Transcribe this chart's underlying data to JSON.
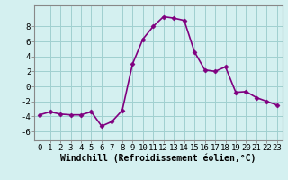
{
  "x": [
    0,
    1,
    2,
    3,
    4,
    5,
    6,
    7,
    8,
    9,
    10,
    11,
    12,
    13,
    14,
    15,
    16,
    17,
    18,
    19,
    20,
    21,
    22,
    23
  ],
  "y": [
    -3.8,
    -3.4,
    -3.7,
    -3.8,
    -3.8,
    -3.4,
    -5.3,
    -4.7,
    -3.2,
    3.0,
    6.3,
    8.0,
    9.3,
    9.1,
    8.8,
    4.6,
    2.2,
    2.0,
    2.6,
    -0.8,
    -0.7,
    -1.5,
    -2.0,
    -2.5
  ],
  "line_color": "#800080",
  "marker": "D",
  "marker_size": 2.5,
  "bg_color": "#d4f0f0",
  "grid_color": "#a0d0d0",
  "xlabel": "Windchill (Refroidissement éolien,°C)",
  "xlabel_fontsize": 7,
  "xtick_labels": [
    "0",
    "1",
    "2",
    "3",
    "4",
    "5",
    "6",
    "7",
    "8",
    "9",
    "10",
    "11",
    "12",
    "13",
    "14",
    "15",
    "16",
    "17",
    "18",
    "19",
    "20",
    "21",
    "22",
    "23"
  ],
  "ytick_values": [
    -6,
    -4,
    -2,
    0,
    2,
    4,
    6,
    8
  ],
  "ylim": [
    -7.2,
    10.8
  ],
  "xlim": [
    -0.5,
    23.5
  ],
  "tick_fontsize": 6.5,
  "line_width": 1.2
}
